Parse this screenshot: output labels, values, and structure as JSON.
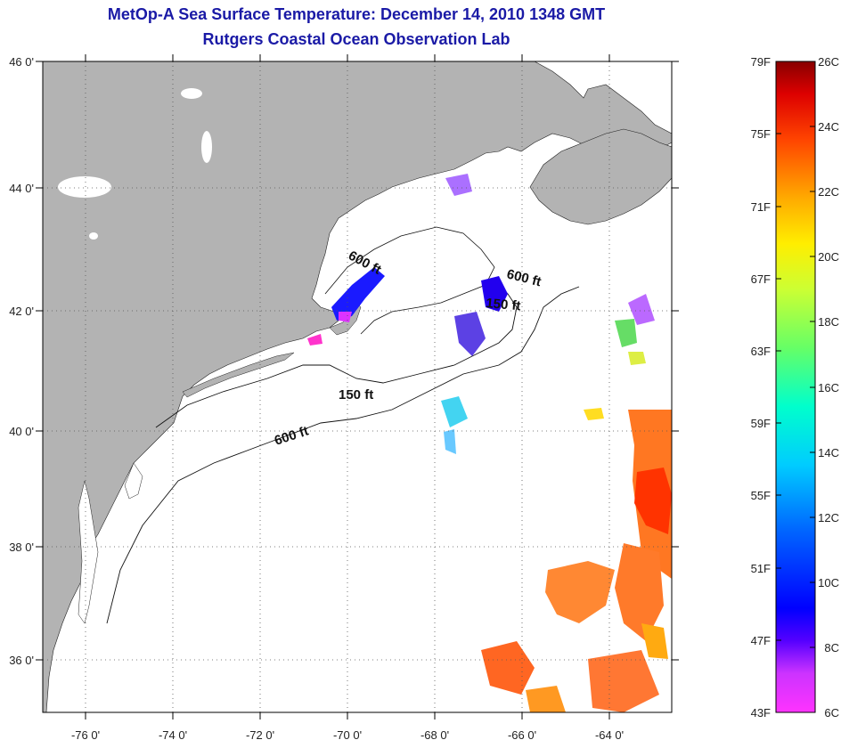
{
  "title": {
    "line1": "MetOp-A Sea Surface Temperature:  December 14, 2010 1348 GMT",
    "line2": "Rutgers Coastal Ocean Observation Lab"
  },
  "map": {
    "lat_ticks": [
      "46 0'",
      "44 0'",
      "42 0'",
      "40 0'",
      "38 0'",
      "36 0'"
    ],
    "lon_ticks": [
      "-76 0'",
      "-74 0'",
      "-72 0'",
      "-70 0'",
      "-68 0'",
      "-66 0'",
      "-64 0'"
    ],
    "contour_labels": [
      "600 ft",
      "600 ft",
      "150 ft",
      "150 ft",
      "600 ft"
    ],
    "colors": {
      "land": "#b3b3b3",
      "ocean": "#ffffff",
      "grid": "#555555"
    }
  },
  "colorbar": {
    "fahrenheit": [
      "79F",
      "75F",
      "71F",
      "67F",
      "63F",
      "59F",
      "55F",
      "51F",
      "47F",
      "43F"
    ],
    "celsius": [
      "26C",
      "24C",
      "22C",
      "20C",
      "18C",
      "16C",
      "14C",
      "12C",
      "10C",
      "8C",
      "6C"
    ]
  }
}
